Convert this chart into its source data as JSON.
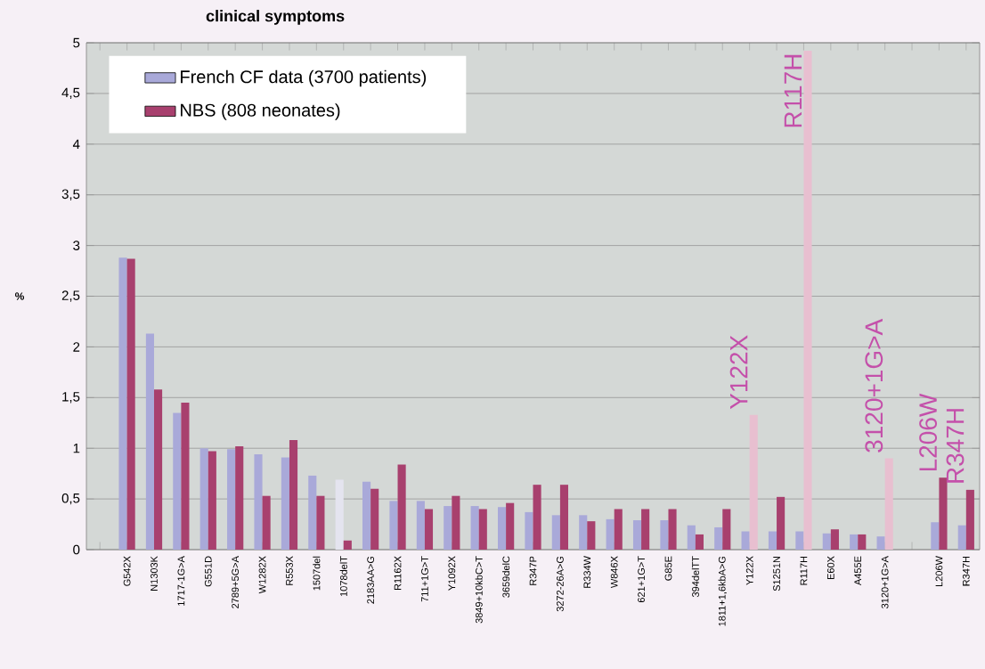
{
  "chart_data": {
    "type": "bar",
    "title": "clinical symptoms",
    "ylabel": "%",
    "categories": [
      null,
      "G542X",
      "N1303K",
      "1717-1G>A",
      "G551D",
      "2789+5G>A",
      "W1282X",
      "R553X",
      "1507del",
      "1078delT",
      "2183AA>G",
      "R1162X",
      "711+1G>T",
      "Y1092X",
      "3849+10kbC>T",
      "3659delC",
      "R347P",
      "3272-26A>G",
      "R334W",
      "W846X",
      "621+1G>T",
      "G85E",
      "394delTT",
      "1811+1,6kbA>G",
      "Y122X",
      "S1251N",
      "R117H",
      "E60X",
      "A455E",
      "3120+1G>A",
      null,
      "L206W",
      "R347H"
    ],
    "series": [
      {
        "name": "French CF data (3700 patients)",
        "color": "#a9a9d9",
        "colors": [
          "#a9a9d9",
          "#a9a9d9",
          "#a9a9d9",
          "#a9a9d9",
          "#a9a9d9",
          "#a9a9d9",
          "#a9a9d9",
          "#a9a9d9",
          "#a9a9d9",
          "#e4e4ef",
          "#a9a9d9",
          "#a9a9d9",
          "#a9a9d9",
          "#a9a9d9",
          "#a9a9d9",
          "#a9a9d9",
          "#a9a9d9",
          "#a9a9d9",
          "#a9a9d9",
          "#a9a9d9",
          "#a9a9d9",
          "#a9a9d9",
          "#a9a9d9",
          "#a9a9d9",
          "#a9a9d9",
          "#a9a9d9",
          "#a9a9d9",
          "#a9a9d9",
          "#a9a9d9",
          "#a9a9d9",
          "#a9a9d9",
          "#a9a9d9",
          "#a9a9d9"
        ],
        "values": [
          null,
          2.88,
          2.13,
          1.35,
          1.0,
          0.99,
          0.94,
          0.91,
          0.73,
          0.69,
          0.67,
          0.48,
          0.48,
          0.43,
          0.43,
          0.42,
          0.37,
          0.34,
          0.34,
          0.3,
          0.29,
          0.29,
          0.24,
          0.22,
          0.18,
          0.18,
          0.18,
          0.16,
          0.15,
          0.13,
          null,
          0.27,
          0.24
        ]
      },
      {
        "name": "NBS (808 neonates)",
        "color": "#a8406e",
        "colors": [
          "#a8406e",
          "#a8406e",
          "#a8406e",
          "#a8406e",
          "#a8406e",
          "#a8406e",
          "#a8406e",
          "#a8406e",
          "#a8406e",
          "#a8406e",
          "#a8406e",
          "#a8406e",
          "#a8406e",
          "#a8406e",
          "#a8406e",
          "#a8406e",
          "#a8406e",
          "#a8406e",
          "#a8406e",
          "#a8406e",
          "#a8406e",
          "#a8406e",
          "#a8406e",
          "#a8406e",
          "#e8bfd0",
          "#a8406e",
          "#e8bfd0",
          "#a8406e",
          "#a8406e",
          "#e8bfd0",
          "#a8406e",
          "#a8406e",
          "#a8406e"
        ],
        "values": [
          null,
          2.87,
          1.58,
          1.45,
          0.97,
          1.02,
          0.53,
          1.08,
          0.53,
          0.09,
          0.6,
          0.84,
          0.4,
          0.53,
          0.4,
          0.46,
          0.64,
          0.64,
          0.28,
          0.4,
          0.4,
          0.4,
          0.15,
          0.4,
          1.33,
          0.52,
          4.92,
          0.2,
          0.15,
          0.9,
          null,
          0.71,
          0.59
        ]
      }
    ],
    "ylim": [
      0,
      5
    ],
    "yticks": [
      0,
      {
        "value": 0.5,
        "label": "0,5"
      },
      1,
      {
        "value": 1.5,
        "label": "1,5"
      },
      2,
      {
        "value": 2.5,
        "label": "2,5"
      },
      3,
      {
        "value": 3.5,
        "label": "3,5"
      },
      4,
      {
        "value": 4.5,
        "label": "4,5"
      },
      5
    ],
    "grid": "y",
    "legend": "top left",
    "annotations": [
      {
        "text": "Y122X",
        "x": "Y122X",
        "y": 1.33
      },
      {
        "text": "R117H",
        "x": "R117H",
        "y": 4.92
      },
      {
        "text": "3120+1G>A",
        "x": "3120+1G>A",
        "y": 0.9
      },
      {
        "text": "L206W",
        "x": "L206W",
        "y": 0.71
      },
      {
        "text": "R347H",
        "x": "R347H",
        "y": 0.59
      }
    ]
  }
}
